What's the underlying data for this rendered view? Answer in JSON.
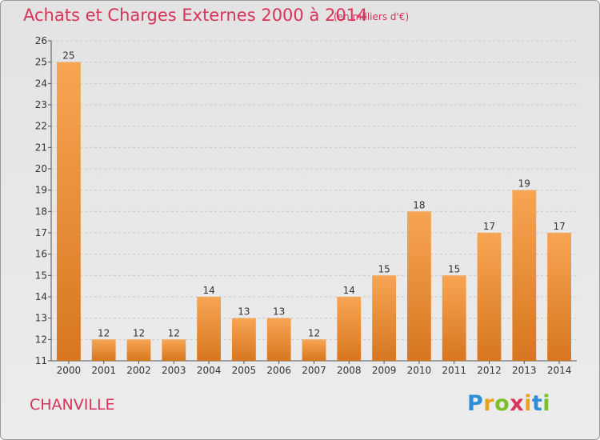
{
  "title": "Achats et Charges Externes 2000 à 2014",
  "subtitle": "(en milliers d'€)",
  "city": "CHANVILLE",
  "logo": {
    "letters": [
      "P",
      "r",
      "o",
      "x",
      "i",
      "t",
      "i"
    ],
    "colors": [
      "#2a8fd6",
      "#e8a21b",
      "#7bbf2a",
      "#d8335a",
      "#e8a21b",
      "#2a8fd6",
      "#7bbf2a"
    ]
  },
  "colors": {
    "title": "#d8335a",
    "bar_light": "#f7a553",
    "bar_dark": "#d7761f"
  },
  "chart_data": {
    "type": "bar",
    "categories": [
      "2000",
      "2001",
      "2002",
      "2003",
      "2004",
      "2005",
      "2006",
      "2007",
      "2008",
      "2009",
      "2010",
      "2011",
      "2012",
      "2013",
      "2014"
    ],
    "values": [
      25,
      12,
      12,
      12,
      14,
      13,
      13,
      12,
      14,
      15,
      18,
      15,
      17,
      19,
      17
    ],
    "ylim": [
      11,
      26
    ],
    "yticks": [
      11,
      12,
      13,
      14,
      15,
      16,
      17,
      18,
      19,
      20,
      21,
      22,
      23,
      24,
      25,
      26
    ],
    "grid": true
  }
}
